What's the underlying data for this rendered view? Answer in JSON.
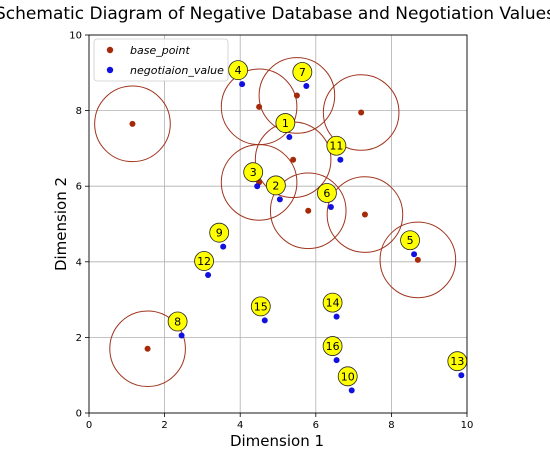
{
  "chart_data": {
    "type": "scatter",
    "title": "Schematic Diagram of Negative Database and Negotiation Values",
    "xlabel": "Dimension 1",
    "ylabel": "Dimension 2",
    "xlim": [
      0,
      10
    ],
    "ylim": [
      0,
      10
    ],
    "xticks": [
      0,
      2,
      4,
      6,
      8,
      10
    ],
    "yticks": [
      0,
      2,
      4,
      6,
      8,
      10
    ],
    "grid": true,
    "legend_position": "top-left",
    "circle_radius": 1.0,
    "series": [
      {
        "name": "base_point",
        "color": "#a52a0a",
        "circle_color": "#a0341e",
        "points": [
          {
            "x": 1.15,
            "y": 7.65
          },
          {
            "x": 4.5,
            "y": 8.1
          },
          {
            "x": 5.5,
            "y": 8.4
          },
          {
            "x": 7.2,
            "y": 7.95
          },
          {
            "x": 5.4,
            "y": 6.7
          },
          {
            "x": 4.5,
            "y": 6.1
          },
          {
            "x": 5.8,
            "y": 5.35
          },
          {
            "x": 7.3,
            "y": 5.25
          },
          {
            "x": 8.7,
            "y": 4.05
          },
          {
            "x": 1.55,
            "y": 1.7
          }
        ]
      },
      {
        "name": "negotiaion_value",
        "color": "#1010e0",
        "points": [
          {
            "label": "1",
            "x": 5.3,
            "y": 7.3
          },
          {
            "label": "2",
            "x": 5.05,
            "y": 5.65
          },
          {
            "label": "3",
            "x": 4.45,
            "y": 6.0
          },
          {
            "label": "4",
            "x": 4.05,
            "y": 8.7
          },
          {
            "label": "5",
            "x": 8.6,
            "y": 4.2
          },
          {
            "label": "6",
            "x": 6.4,
            "y": 5.45
          },
          {
            "label": "7",
            "x": 5.75,
            "y": 8.65
          },
          {
            "label": "8",
            "x": 2.45,
            "y": 2.05
          },
          {
            "label": "9",
            "x": 3.55,
            "y": 4.4
          },
          {
            "label": "10",
            "x": 6.95,
            "y": 0.6
          },
          {
            "label": "11",
            "x": 6.65,
            "y": 6.7
          },
          {
            "label": "12",
            "x": 3.15,
            "y": 3.65
          },
          {
            "label": "13",
            "x": 9.85,
            "y": 1.0
          },
          {
            "label": "14",
            "x": 6.55,
            "y": 2.55
          },
          {
            "label": "15",
            "x": 4.65,
            "y": 2.45
          },
          {
            "label": "16",
            "x": 6.55,
            "y": 1.4
          }
        ]
      }
    ]
  }
}
